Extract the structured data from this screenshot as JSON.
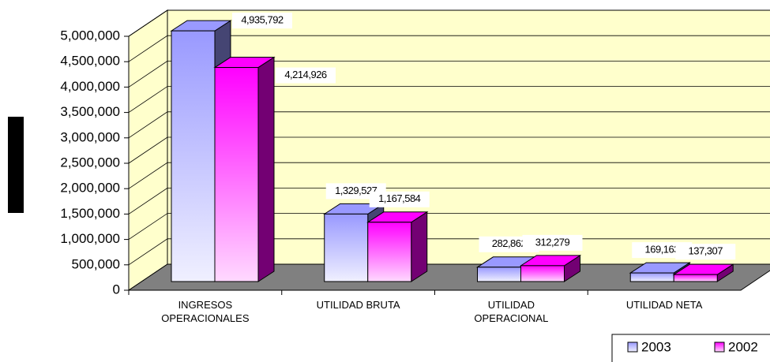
{
  "chart_data": {
    "type": "bar3d",
    "categories": [
      "INGRESOS OPERACIONALES",
      "UTILIDAD BRUTA",
      "UTILIDAD OPERACIONAL",
      "UTILIDAD NETA"
    ],
    "series": [
      {
        "name": "2003",
        "color": "#9999ff",
        "values": [
          4935792,
          1329527,
          282862,
          169163
        ],
        "value_labels": [
          "4,935,792",
          "1,329,527",
          "282,862",
          "169,163"
        ]
      },
      {
        "name": "2002",
        "color": "#ff00ff",
        "values": [
          4214926,
          1167584,
          312279,
          137307
        ],
        "value_labels": [
          "4,214,926",
          "1,167,584",
          "312,279",
          "137,307"
        ]
      }
    ],
    "ylim": [
      0,
      5000000
    ],
    "yticks": [
      0,
      {
        "value": 500000,
        "label": "500,000"
      },
      {
        "value": 1000000,
        "label": "1,000,000"
      },
      {
        "value": 1500000,
        "label": "1,500,000"
      },
      {
        "value": 2000000,
        "label": "2,000,000"
      },
      {
        "value": 2500000,
        "label": "2,500,000"
      },
      {
        "value": 3000000,
        "label": "3,000,000"
      },
      {
        "value": 3500000,
        "label": "3,500,000"
      },
      {
        "value": 4000000,
        "label": "4,000,000"
      },
      {
        "value": 4500000,
        "label": "4,500,000"
      },
      {
        "value": 5000000,
        "label": "5,000,000"
      }
    ],
    "grid": true,
    "legend": "bottom-right"
  }
}
